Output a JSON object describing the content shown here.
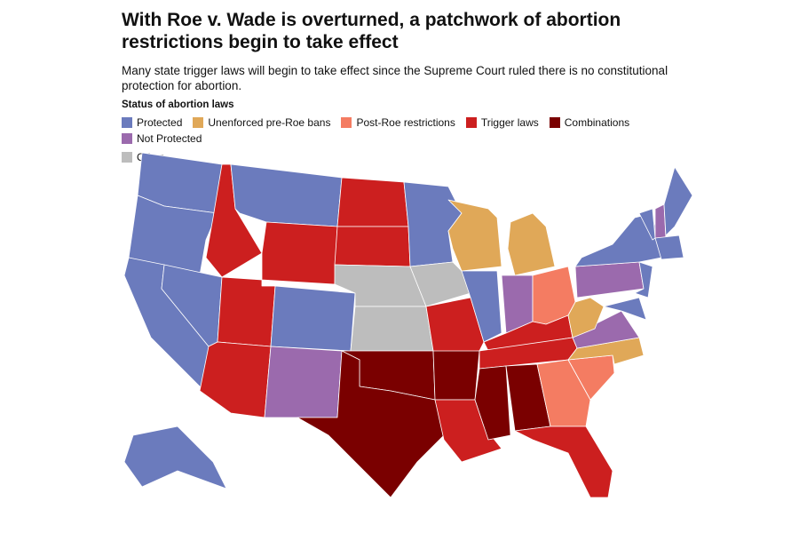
{
  "header": {
    "title": "With Roe v. Wade is overturned, a patchwork of abortion restrictions begin to take effect",
    "subtitle": "Many state trigger laws will begin to take effect since the Supreme Court ruled there is no constitutional protection for abortion."
  },
  "legend": {
    "title": "Status of abortion laws",
    "items": [
      {
        "label": "Protected",
        "color": "#6b7bbd"
      },
      {
        "label": "Unenforced pre-Roe bans",
        "color": "#e0a858"
      },
      {
        "label": "Post-Roe restrictions",
        "color": "#f47c62"
      },
      {
        "label": "Trigger laws",
        "color": "#cc1f1f"
      },
      {
        "label": "Combinations",
        "color": "#7a0000"
      },
      {
        "label": "Not Protected",
        "color": "#9b6aad"
      },
      {
        "label": "Other",
        "color": "#bdbdbd"
      }
    ]
  }
}
